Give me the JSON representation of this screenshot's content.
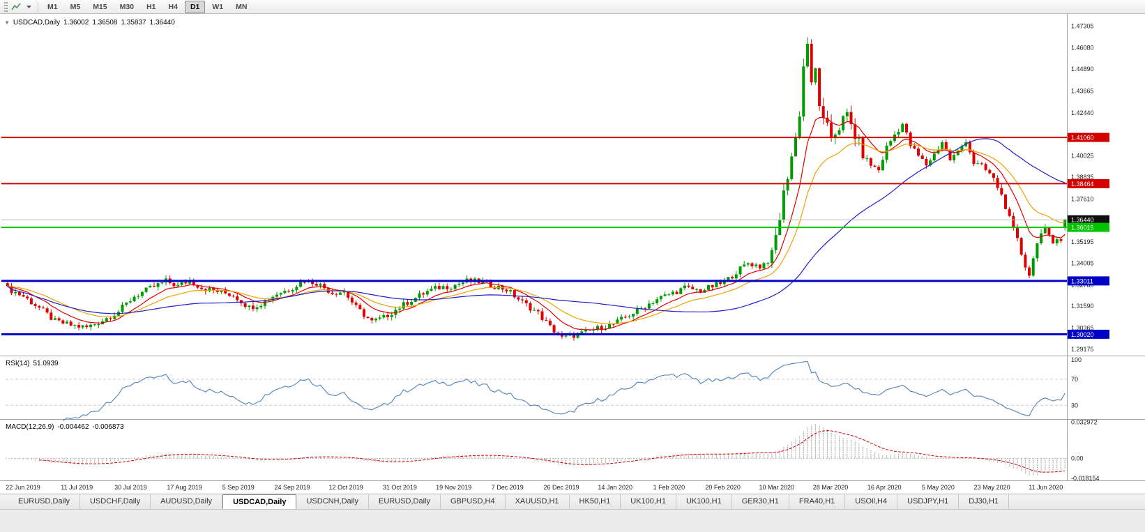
{
  "toolbar": {
    "timeframes": [
      "M1",
      "M5",
      "M15",
      "M30",
      "H1",
      "H4",
      "D1",
      "W1",
      "MN"
    ],
    "active_timeframe": "D1"
  },
  "chart": {
    "one_click_arrow": "▼",
    "title": "USDCAD,Daily",
    "open": "1.36002",
    "high": "1.36508",
    "low": "1.35837",
    "close": "1.36440"
  },
  "rsi_panel": {
    "name": "RSI(14)",
    "value": "51.0939"
  },
  "macd_panel": {
    "name": "MACD(12,26,9)",
    "value1": "-0.004462",
    "value2": "-0.006873"
  },
  "chart_data": {
    "type": "candlestick",
    "symbol": "USDCAD",
    "timeframe": "Daily",
    "y_range": [
      1.289,
      1.4775
    ],
    "candle_count": 268,
    "last_candle_ohlc": [
      1.36002,
      1.36508,
      1.35837,
      1.3644
    ],
    "current_price": 1.3644,
    "current_price_label": "1.36440",
    "spike_high": {
      "index": 202,
      "price": 1.4668
    },
    "spike_low": {
      "index": 258,
      "price": 1.3316
    },
    "up_color": "#009B00",
    "down_color": "#E00000",
    "close_anchors": [
      [
        0,
        1.3258
      ],
      [
        4,
        1.3215
      ],
      [
        8,
        1.315
      ],
      [
        12,
        1.3075
      ],
      [
        16,
        1.3052
      ],
      [
        20,
        1.304
      ],
      [
        24,
        1.308
      ],
      [
        28,
        1.313
      ],
      [
        32,
        1.3215
      ],
      [
        36,
        1.3258
      ],
      [
        40,
        1.33
      ],
      [
        43,
        1.3272
      ],
      [
        46,
        1.3305
      ],
      [
        49,
        1.3262
      ],
      [
        53,
        1.3242
      ],
      [
        57,
        1.3222
      ],
      [
        61,
        1.3152
      ],
      [
        64,
        1.3175
      ],
      [
        68,
        1.323
      ],
      [
        71,
        1.3252
      ],
      [
        75,
        1.3305
      ],
      [
        78,
        1.329
      ],
      [
        82,
        1.3235
      ],
      [
        85,
        1.3242
      ],
      [
        88,
        1.3152
      ],
      [
        92,
        1.3072
      ],
      [
        95,
        1.3095
      ],
      [
        98,
        1.314
      ],
      [
        102,
        1.3195
      ],
      [
        106,
        1.3242
      ],
      [
        109,
        1.3265
      ],
      [
        112,
        1.3272
      ],
      [
        116,
        1.33
      ],
      [
        120,
        1.3295
      ],
      [
        123,
        1.3272
      ],
      [
        126,
        1.3252
      ],
      [
        130,
        1.3182
      ],
      [
        134,
        1.312
      ],
      [
        137,
        1.3042
      ],
      [
        140,
        1.298
      ],
      [
        143,
        1.2996
      ],
      [
        146,
        1.3012
      ],
      [
        150,
        1.3042
      ],
      [
        153,
        1.3058
      ],
      [
        157,
        1.311
      ],
      [
        161,
        1.316
      ],
      [
        164,
        1.32
      ],
      [
        167,
        1.3225
      ],
      [
        171,
        1.3262
      ],
      [
        175,
        1.3246
      ],
      [
        178,
        1.327
      ],
      [
        181,
        1.3292
      ],
      [
        184,
        1.3352
      ],
      [
        187,
        1.3402
      ],
      [
        190,
        1.3382
      ],
      [
        193,
        1.3432
      ],
      [
        195,
        1.3662
      ],
      [
        197,
        1.3902
      ],
      [
        199,
        1.4102
      ],
      [
        200,
        1.4252
      ],
      [
        201,
        1.4502
      ],
      [
        202,
        1.4642
      ],
      [
        203,
        1.4382
      ],
      [
        204,
        1.4482
      ],
      [
        205,
        1.4302
      ],
      [
        206,
        1.4182
      ],
      [
        208,
        1.4112
      ],
      [
        210,
        1.4172
      ],
      [
        212,
        1.4222
      ],
      [
        214,
        1.4122
      ],
      [
        216,
        1.4002
      ],
      [
        218,
        1.3952
      ],
      [
        220,
        1.3922
      ],
      [
        222,
        1.4052
      ],
      [
        224,
        1.4122
      ],
      [
        226,
        1.4182
      ],
      [
        228,
        1.4062
      ],
      [
        230,
        1.4002
      ],
      [
        232,
        1.3952
      ],
      [
        234,
        1.4012
      ],
      [
        236,
        1.4082
      ],
      [
        238,
        1.3982
      ],
      [
        240,
        1.4022
      ],
      [
        242,
        1.4092
      ],
      [
        244,
        1.3962
      ],
      [
        246,
        1.3942
      ],
      [
        248,
        1.3902
      ],
      [
        249,
        1.3872
      ],
      [
        251,
        1.3782
      ],
      [
        253,
        1.3652
      ],
      [
        255,
        1.3532
      ],
      [
        256,
        1.3452
      ],
      [
        257,
        1.3385
      ],
      [
        258,
        1.3335
      ],
      [
        259,
        1.3425
      ],
      [
        260,
        1.3525
      ],
      [
        261,
        1.3565
      ],
      [
        262,
        1.3585
      ],
      [
        263,
        1.3548
      ],
      [
        264,
        1.3512
      ],
      [
        265,
        1.3548
      ],
      [
        266,
        1.3532
      ],
      [
        267,
        1.3644
      ]
    ],
    "price_axis_labels": [
      "1.47305",
      "1.46080",
      "1.44890",
      "1.43665",
      "1.42440",
      "1.40025",
      "1.38835",
      "1.37610",
      "1.35195",
      "1.34005",
      "1.32780",
      "1.31590",
      "1.30365",
      "1.29175"
    ],
    "horizontal_lines": [
      {
        "price": 1.4106,
        "label": "1.41060",
        "color": "#D40000",
        "width": 2
      },
      {
        "price": 1.38464,
        "label": "1.38464",
        "color": "#D40000",
        "width": 2
      },
      {
        "price": 1.36015,
        "label": "1.36015",
        "color": "#00C400",
        "width": 2
      },
      {
        "price": 1.33011,
        "label": "1.33011",
        "color": "#0000C8",
        "width": 3
      },
      {
        "price": 1.3002,
        "label": "1.30020",
        "color": "#0000C8",
        "width": 3
      }
    ],
    "moving_averages": [
      {
        "name": "ma-fast-red",
        "type": "ema",
        "period": 10,
        "color": "#E00000"
      },
      {
        "name": "ma-mid-orange",
        "type": "ema",
        "period": 21,
        "color": "#F0A000"
      },
      {
        "name": "ma-slow-blue",
        "type": "sma",
        "period": 50,
        "color": "#2020C8"
      }
    ],
    "x_axis_labels": [
      "22 Jun 2019",
      "11 Jul 2019",
      "30 Jul 2019",
      "17 Aug 2019",
      "5 Sep 2019",
      "24 Sep 2019",
      "12 Oct 2019",
      "31 Oct 2019",
      "19 Nov 2019",
      "7 Dec 2019",
      "26 Dec 2019",
      "14 Jan 2020",
      "1 Feb 2020",
      "20 Feb 2020",
      "10 Mar 2020",
      "28 Mar 2020",
      "16 Apr 2020",
      "5 May 2020",
      "23 May 2020",
      "11 Jun 2020"
    ],
    "rsi": {
      "period": 14,
      "levels": [
        "100",
        "70",
        "30"
      ],
      "level_values": [
        100,
        70,
        30
      ],
      "dashed_levels": [
        70,
        30
      ],
      "scale": [
        10,
        103
      ],
      "color": "#4F81BD"
    },
    "macd": {
      "fast": 12,
      "slow": 26,
      "signal": 9,
      "axis_labels": [
        "0.032972",
        "0.00",
        "-0.018154"
      ],
      "axis_values": [
        0.032972,
        0,
        -0.018154
      ],
      "scale": [
        -0.0195,
        0.034
      ],
      "histogram_color": "#9A9A9A",
      "signal_color": "#D40000"
    }
  },
  "tabs": [
    {
      "label": "EURUSD,Daily",
      "active": false
    },
    {
      "label": "USDCHF,Daily",
      "active": false
    },
    {
      "label": "AUDUSD,Daily",
      "active": false
    },
    {
      "label": "USDCAD,Daily",
      "active": true
    },
    {
      "label": "USDCNH,Daily",
      "active": false
    },
    {
      "label": "EURUSD,Daily",
      "active": false
    },
    {
      "label": "GBPUSD,H4",
      "active": false
    },
    {
      "label": "XAUUSD,H1",
      "active": false
    },
    {
      "label": "HK50,H1",
      "active": false
    },
    {
      "label": "UK100,H1",
      "active": false
    },
    {
      "label": "UK100,H1",
      "active": false
    },
    {
      "label": "GER30,H1",
      "active": false
    },
    {
      "label": "FRA40,H1",
      "active": false
    },
    {
      "label": "USOil,H4",
      "active": false
    },
    {
      "label": "USDJPY,H1",
      "active": false
    },
    {
      "label": "DJ30,H1",
      "active": false
    }
  ]
}
